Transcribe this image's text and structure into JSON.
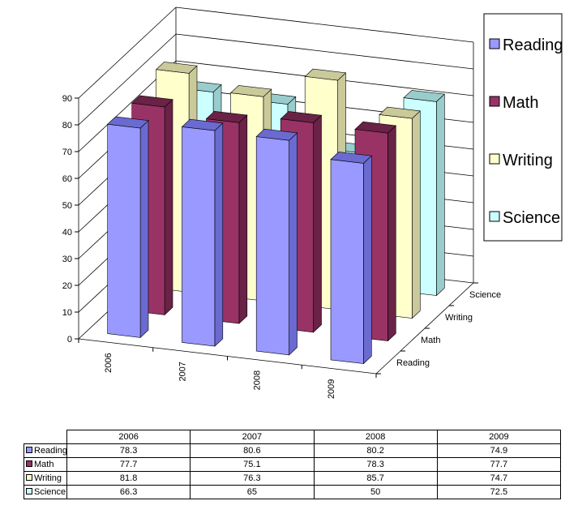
{
  "chart_data": {
    "type": "bar",
    "categories": [
      "2006",
      "2007",
      "2008",
      "2009"
    ],
    "series": [
      {
        "name": "Reading",
        "values": [
          78.3,
          80.6,
          80.2,
          74.9
        ]
      },
      {
        "name": "Math",
        "values": [
          77.7,
          75.1,
          78.3,
          77.7
        ]
      },
      {
        "name": "Writing",
        "values": [
          81.8,
          76.3,
          85.7,
          74.7
        ]
      },
      {
        "name": "Science",
        "values": [
          66.3,
          65,
          50,
          72.5
        ]
      }
    ],
    "series_colors": [
      "#9999ff",
      "#993366",
      "#ffffcc",
      "#ccffff"
    ],
    "series_side_colors": [
      "#6a6ad0",
      "#6a2246",
      "#c9c99a",
      "#99cccc"
    ],
    "ylim": [
      0,
      90
    ],
    "yticks": [
      "0",
      "10",
      "20",
      "30",
      "40",
      "50",
      "60",
      "70",
      "80",
      "90"
    ],
    "depth_labels": [
      "Reading",
      "Math",
      "Writing",
      "Science"
    ],
    "grid": true,
    "legend_position": "right",
    "projection": "3d"
  },
  "table": {
    "headers": [
      "2006",
      "2007",
      "2008",
      "2009"
    ],
    "rows": [
      {
        "label": "Reading",
        "values": [
          "78.3",
          "80.6",
          "80.2",
          "74.9"
        ]
      },
      {
        "label": "Math",
        "values": [
          "77.7",
          "75.1",
          "78.3",
          "77.7"
        ]
      },
      {
        "label": "Writing",
        "values": [
          "81.8",
          "76.3",
          "85.7",
          "74.7"
        ]
      },
      {
        "label": "Science",
        "values": [
          "66.3",
          "65",
          "50",
          "72.5"
        ]
      }
    ]
  }
}
